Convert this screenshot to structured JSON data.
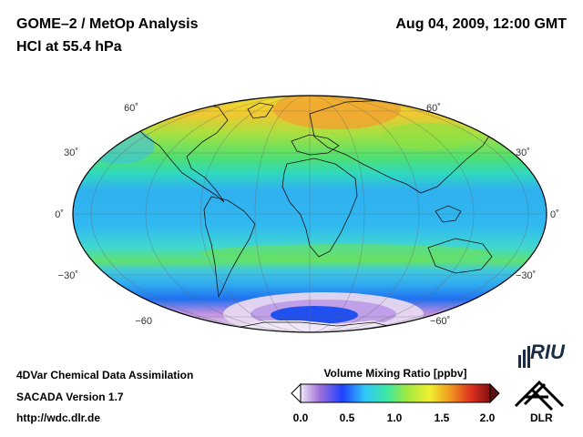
{
  "header": {
    "instrument": "GOME–2 / MetOp Analysis",
    "species": "HCl at 55.4 hPa",
    "date": "Aug 04, 2009, 12:00 GMT"
  },
  "map": {
    "projection": "Mollweide (Hammer) global",
    "lat_labels_left": [
      "60˚",
      "30˚",
      "0˚",
      "−30˚",
      "−60"
    ],
    "lat_labels_right": [
      "60˚",
      "30˚",
      "0˚",
      "−30˚",
      "−60˚"
    ]
  },
  "colorbar": {
    "title": "Volume Mixing Ratio [ppbv]",
    "tick_labels": [
      "0.0",
      "0.5",
      "1.0",
      "1.5",
      "2.0"
    ],
    "range": [
      0.0,
      2.0
    ],
    "colors": [
      "#f0e8f8",
      "#a070d8",
      "#2040ff",
      "#30c8f8",
      "#40e8a0",
      "#a0e840",
      "#f0f030",
      "#f0a020",
      "#e03020",
      "#801010"
    ]
  },
  "footer": {
    "line1": "4DVar Chemical Data Assimilation",
    "line2": "SACADA Version 1.7",
    "line3": "http://wdc.dlr.de"
  },
  "logos": {
    "riu": "RIU",
    "dlr": "DLR"
  }
}
